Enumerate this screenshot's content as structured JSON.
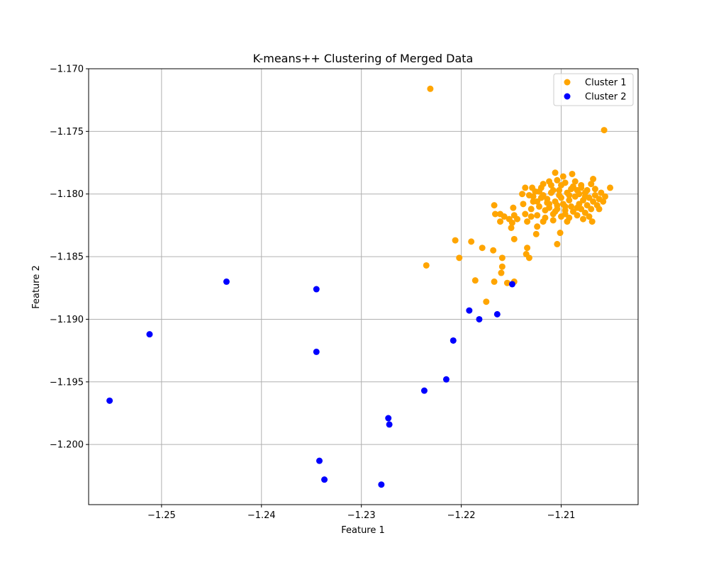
{
  "chart_data": {
    "type": "scatter",
    "title": "K-means++ Clustering of Merged Data",
    "xlabel": "Feature 1",
    "ylabel": "Feature 2",
    "xlim": [
      -1.2573,
      -1.2023
    ],
    "ylim": [
      -1.2048,
      -1.17
    ],
    "grid": true,
    "legend_position": "top-right",
    "x_ticks": [
      {
        "value": -1.25,
        "label": "−1.25"
      },
      {
        "value": -1.24,
        "label": "−1.24"
      },
      {
        "value": -1.23,
        "label": "−1.23"
      },
      {
        "value": -1.22,
        "label": "−1.22"
      },
      {
        "value": -1.21,
        "label": "−1.21"
      }
    ],
    "y_ticks": [
      {
        "value": -1.17,
        "label": "−1.170"
      },
      {
        "value": -1.175,
        "label": "−1.175"
      },
      {
        "value": -1.18,
        "label": "−1.180"
      },
      {
        "value": -1.185,
        "label": "−1.185"
      },
      {
        "value": -1.19,
        "label": "−1.190"
      },
      {
        "value": -1.195,
        "label": "−1.195"
      },
      {
        "value": -1.2,
        "label": "−1.200"
      }
    ],
    "series": [
      {
        "name": "Cluster 1",
        "color": "#ffa500",
        "points": [
          [
            -1.2231,
            -1.1716
          ],
          [
            -1.2057,
            -1.1749
          ],
          [
            -1.2235,
            -1.1857
          ],
          [
            -1.2051,
            -1.1795
          ],
          [
            -1.2068,
            -1.1788
          ],
          [
            -1.2069,
            -1.1822
          ],
          [
            -1.2101,
            -1.1831
          ],
          [
            -1.2104,
            -1.184
          ],
          [
            -1.2089,
            -1.1784
          ],
          [
            -1.2106,
            -1.1783
          ],
          [
            -1.2129,
            -1.1795
          ],
          [
            -1.2136,
            -1.1795
          ],
          [
            -1.2139,
            -1.18
          ],
          [
            -1.2138,
            -1.1808
          ],
          [
            -1.2144,
            -1.182
          ],
          [
            -1.2148,
            -1.1811
          ],
          [
            -1.2147,
            -1.1817
          ],
          [
            -1.2149,
            -1.1823
          ],
          [
            -1.215,
            -1.1827
          ],
          [
            -1.2152,
            -1.182
          ],
          [
            -1.2157,
            -1.1818
          ],
          [
            -1.2161,
            -1.1816
          ],
          [
            -1.2161,
            -1.1822
          ],
          [
            -1.2166,
            -1.1816
          ],
          [
            -1.2167,
            -1.1809
          ],
          [
            -1.2147,
            -1.1836
          ],
          [
            -1.2124,
            -1.1826
          ],
          [
            -1.2125,
            -1.1832
          ],
          [
            -1.213,
            -1.1818
          ],
          [
            -1.2134,
            -1.1822
          ],
          [
            -1.2134,
            -1.1843
          ],
          [
            -1.2135,
            -1.1848
          ],
          [
            -1.2132,
            -1.1851
          ],
          [
            -1.2206,
            -1.1837
          ],
          [
            -1.219,
            -1.1838
          ],
          [
            -1.2179,
            -1.1843
          ],
          [
            -1.2168,
            -1.1845
          ],
          [
            -1.2202,
            -1.1851
          ],
          [
            -1.2159,
            -1.1851
          ],
          [
            -1.2159,
            -1.1858
          ],
          [
            -1.216,
            -1.1863
          ],
          [
            -1.2186,
            -1.1869
          ],
          [
            -1.2167,
            -1.187
          ],
          [
            -1.2154,
            -1.1871
          ],
          [
            -1.2147,
            -1.187
          ],
          [
            -1.2175,
            -1.1886
          ],
          [
            -1.212,
            -1.1795
          ],
          [
            -1.2112,
            -1.179
          ],
          [
            -1.2104,
            -1.1789
          ],
          [
            -1.2096,
            -1.1791
          ],
          [
            -1.2088,
            -1.1794
          ],
          [
            -1.208,
            -1.1793
          ],
          [
            -1.2074,
            -1.1797
          ],
          [
            -1.2066,
            -1.1801
          ],
          [
            -1.206,
            -1.1799
          ],
          [
            -1.2058,
            -1.1806
          ],
          [
            -1.2064,
            -1.1809
          ],
          [
            -1.207,
            -1.1812
          ],
          [
            -1.2076,
            -1.1815
          ],
          [
            -1.2084,
            -1.1817
          ],
          [
            -1.2092,
            -1.1819
          ],
          [
            -1.21,
            -1.1818
          ],
          [
            -1.2108,
            -1.1816
          ],
          [
            -1.2116,
            -1.1813
          ],
          [
            -1.2122,
            -1.181
          ],
          [
            -1.2128,
            -1.1806
          ],
          [
            -1.2132,
            -1.1801
          ],
          [
            -1.2126,
            -1.1798
          ],
          [
            -1.2118,
            -1.1801
          ],
          [
            -1.211,
            -1.1799
          ],
          [
            -1.2102,
            -1.1797
          ],
          [
            -1.2094,
            -1.1799
          ],
          [
            -1.2086,
            -1.1802
          ],
          [
            -1.2078,
            -1.1805
          ],
          [
            -1.2072,
            -1.1803
          ],
          [
            -1.2082,
            -1.1808
          ],
          [
            -1.209,
            -1.181
          ],
          [
            -1.2098,
            -1.1808
          ],
          [
            -1.2106,
            -1.1806
          ],
          [
            -1.2114,
            -1.1807
          ],
          [
            -1.212,
            -1.1803
          ],
          [
            -1.2112,
            -1.1811
          ],
          [
            -1.2104,
            -1.1812
          ],
          [
            -1.2096,
            -1.1813
          ],
          [
            -1.2088,
            -1.1814
          ],
          [
            -1.208,
            -1.1812
          ],
          [
            -1.2116,
            -1.1819
          ],
          [
            -1.2108,
            -1.1821
          ],
          [
            -1.2124,
            -1.1817
          ],
          [
            -1.21,
            -1.1803
          ],
          [
            -1.2092,
            -1.1805
          ],
          [
            -1.2084,
            -1.1797
          ],
          [
            -1.2076,
            -1.1799
          ],
          [
            -1.2068,
            -1.1806
          ],
          [
            -1.2062,
            -1.1812
          ],
          [
            -1.2072,
            -1.1818
          ],
          [
            -1.2098,
            -1.1786
          ],
          [
            -1.211,
            -1.1793
          ],
          [
            -1.2122,
            -1.1798
          ],
          [
            -1.213,
            -1.1812
          ],
          [
            -1.2136,
            -1.1816
          ],
          [
            -1.2118,
            -1.1822
          ],
          [
            -1.2094,
            -1.1822
          ],
          [
            -1.2074,
            -1.1809
          ],
          [
            -1.2056,
            -1.1802
          ],
          [
            -1.2086,
            -1.179
          ],
          [
            -1.2102,
            -1.1801
          ],
          [
            -1.209,
            -1.1796
          ],
          [
            -1.2114,
            -1.1804
          ],
          [
            -1.2128,
            -1.1802
          ],
          [
            -1.2106,
            -1.1814
          ],
          [
            -1.2082,
            -1.18
          ],
          [
            -1.2066,
            -1.1796
          ],
          [
            -1.2096,
            -1.1816
          ],
          [
            -1.2078,
            -1.182
          ],
          [
            -1.2118,
            -1.1792
          ],
          [
            -1.21,
            -1.1793
          ],
          [
            -1.207,
            -1.1792
          ],
          [
            -1.2062,
            -1.1804
          ],
          [
            -1.2124,
            -1.1806
          ],
          [
            -1.2108,
            -1.1797
          ],
          [
            -1.2092,
            -1.1801
          ],
          [
            -1.2084,
            -1.1811
          ],
          [
            -1.2112,
            -1.1808
          ],
          [
            -1.2096,
            -1.181
          ],
          [
            -1.2076,
            -1.1802
          ],
          [
            -1.208,
            -1.1795
          ],
          [
            -1.2104,
            -1.1809
          ]
        ]
      },
      {
        "name": "Cluster 2",
        "color": "#0000ff",
        "points": [
          [
            -1.2552,
            -1.1965
          ],
          [
            -1.2512,
            -1.1912
          ],
          [
            -1.2435,
            -1.187
          ],
          [
            -1.2345,
            -1.1876
          ],
          [
            -1.2345,
            -1.1926
          ],
          [
            -1.2342,
            -1.2013
          ],
          [
            -1.2337,
            -1.2028
          ],
          [
            -1.2273,
            -1.1979
          ],
          [
            -1.2272,
            -1.1984
          ],
          [
            -1.228,
            -1.2032
          ],
          [
            -1.2237,
            -1.1957
          ],
          [
            -1.2215,
            -1.1948
          ],
          [
            -1.2208,
            -1.1917
          ],
          [
            -1.2192,
            -1.1893
          ],
          [
            -1.2182,
            -1.19
          ],
          [
            -1.2164,
            -1.1896
          ],
          [
            -1.2149,
            -1.1872
          ]
        ]
      }
    ]
  }
}
